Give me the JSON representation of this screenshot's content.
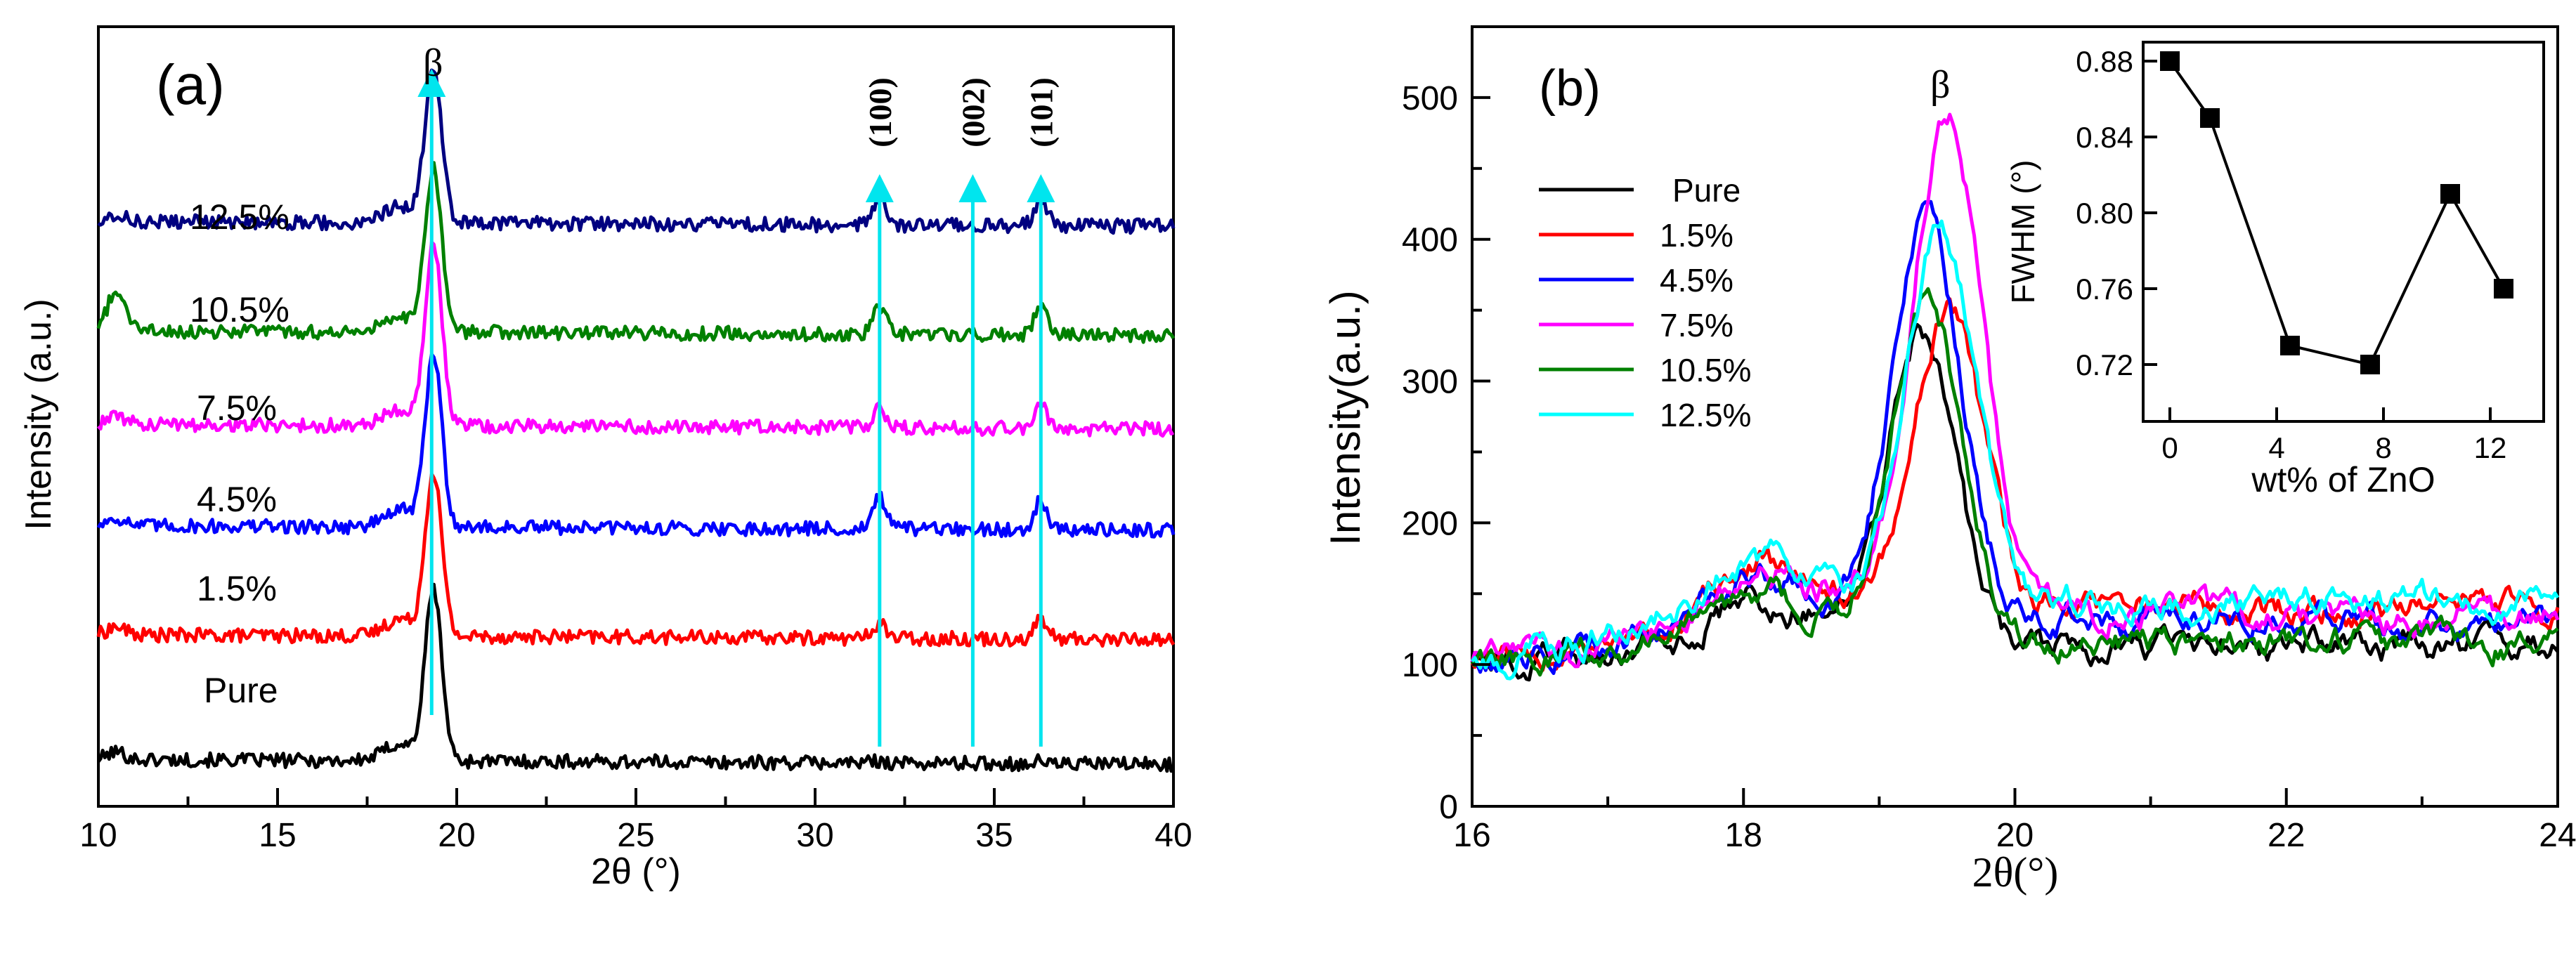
{
  "chart_data": [
    {
      "panel": "(a)",
      "type": "line",
      "title": "",
      "xlabel": "2θ (°)",
      "ylabel": "Intensity (a.u.)",
      "xlim": [
        10,
        40
      ],
      "x_ticks": [
        "10",
        "15",
        "20",
        "25",
        "30",
        "35",
        "40"
      ],
      "y_ticks_shown": false,
      "peak_markers": [
        {
          "label": "β",
          "x": 19.3
        },
        {
          "label": "(100)",
          "x": 31.8
        },
        {
          "label": "(002)",
          "x": 34.4
        },
        {
          "label": "(101)",
          "x": 36.3
        }
      ],
      "series": [
        {
          "name": "Pure",
          "color": "#000000",
          "baseline": 0.06,
          "peak": 0.28,
          "peak2": [
            0.003,
            0.003
          ],
          "startBump": 0.01
        },
        {
          "name": "1.5%",
          "color": "#ff0000",
          "baseline": 0.22,
          "peak": 0.43,
          "peak2": [
            0.02,
            0.025
          ],
          "startBump": 0.01
        },
        {
          "name": "4.5%",
          "color": "#0000ff",
          "baseline": 0.36,
          "peak": 0.58,
          "peak2": [
            0.04,
            0.04
          ],
          "startBump": 0.01
        },
        {
          "name": "7.5%",
          "color": "#ff00ff",
          "baseline": 0.49,
          "peak": 0.72,
          "peak2": [
            0.025,
            0.03
          ],
          "startBump": 0.01
        },
        {
          "name": "10.5%",
          "color": "#008000",
          "baseline": 0.61,
          "peak": 0.82,
          "peak2": [
            0.035,
            0.035
          ],
          "startBump": 0.05
        },
        {
          "name": "12.5%",
          "color": "#000080",
          "baseline": 0.75,
          "peak": 0.95,
          "peak2": [
            0.035,
            0.035
          ],
          "startBump": 0.01
        }
      ]
    },
    {
      "panel": "(b)",
      "type": "line",
      "title": "",
      "xlabel": "2θ(°)",
      "ylabel": "Intensity(a.u.)",
      "xlim": [
        16,
        24
      ],
      "ylim": [
        0,
        550
      ],
      "x_ticks": [
        "16",
        "18",
        "20",
        "22",
        "24"
      ],
      "y_ticks": [
        "0",
        "100",
        "200",
        "300",
        "400",
        "500"
      ],
      "peak_label": {
        "label": "β",
        "x": 19.45
      },
      "series": [
        {
          "name": "Pure",
          "color": "#000000",
          "peak": 330,
          "center": 19.3,
          "floor": 112
        },
        {
          "name": "1.5%",
          "color": "#ff0000",
          "peak": 350,
          "center": 19.5,
          "floor": 140
        },
        {
          "name": "4.5%",
          "color": "#0000ff",
          "peak": 415,
          "center": 19.35,
          "floor": 130
        },
        {
          "name": "7.5%",
          "color": "#ff00ff",
          "peak": 488,
          "center": 19.5,
          "floor": 135
        },
        {
          "name": "10.5%",
          "color": "#008000",
          "peak": 362,
          "center": 19.35,
          "floor": 115
        },
        {
          "name": "12.5%",
          "color": "#00ffff",
          "peak": 405,
          "center": 19.45,
          "floor": 145
        }
      ],
      "inset": {
        "type": "line",
        "xlabel": "wt% of ZnO",
        "ylabel": "FWHM (°)",
        "xlim": [
          -1,
          14
        ],
        "ylim": [
          0.69,
          0.89
        ],
        "x_ticks": [
          "0",
          "4",
          "8",
          "12"
        ],
        "y_ticks": [
          "0.72",
          "0.76",
          "0.80",
          "0.84",
          "0.88"
        ],
        "x": [
          0,
          1.5,
          4.5,
          7.5,
          10.5,
          12.5
        ],
        "y": [
          0.88,
          0.85,
          0.73,
          0.72,
          0.81,
          0.76
        ]
      }
    }
  ]
}
